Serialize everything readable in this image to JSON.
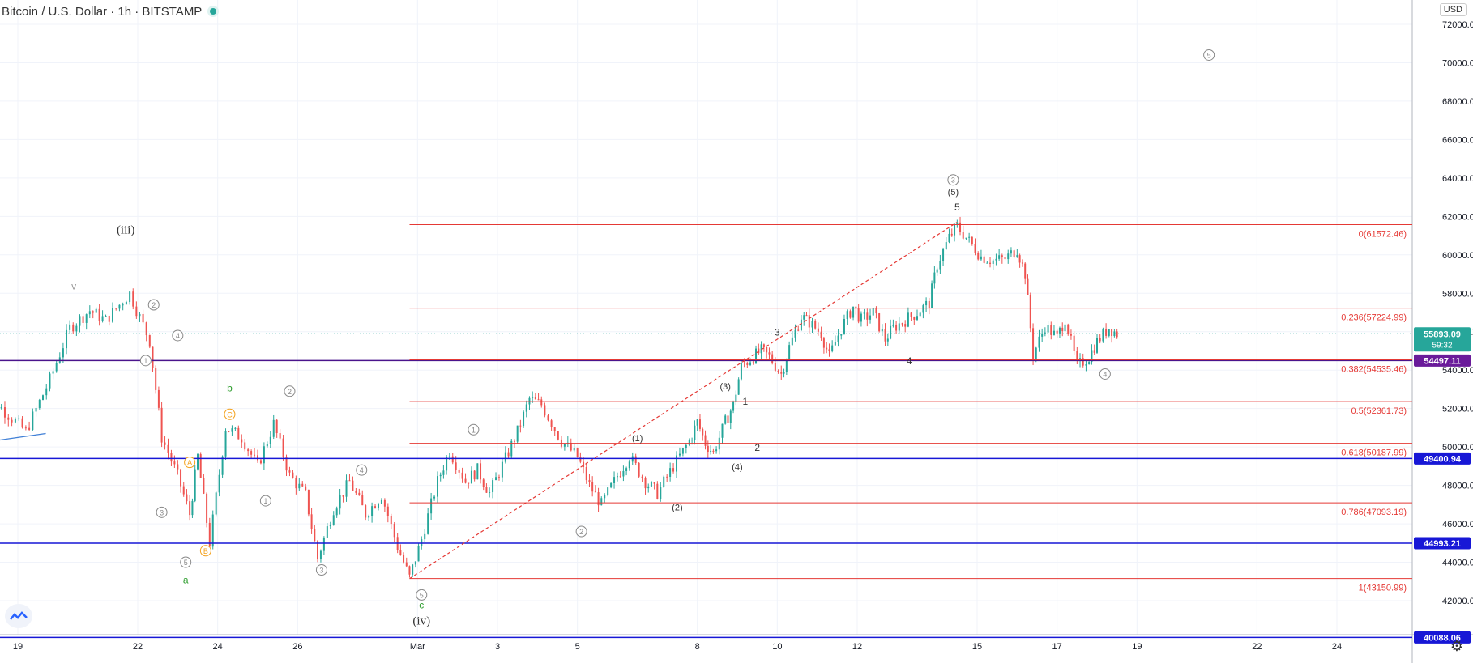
{
  "header": {
    "symbol": "Bitcoin / U.S. Dollar",
    "interval": "1h",
    "exchange": "BITSTAMP",
    "currency": "USD"
  },
  "chart_data": {
    "type": "candlestick",
    "y_range": [
      40000,
      73200
    ],
    "price_axis_ticks": [
      "72000.00",
      "70000.00",
      "68000.00",
      "66000.00",
      "64000.00",
      "62000.00",
      "60000.00",
      "58000.00",
      "56000.00",
      "54000.00",
      "52000.00",
      "50000.00",
      "48000.00",
      "46000.00",
      "44000.00",
      "42000.00"
    ],
    "time_axis_labels": [
      {
        "label": "19",
        "day": 19
      },
      {
        "label": "22",
        "day": 22
      },
      {
        "label": "24",
        "day": 24
      },
      {
        "label": "26",
        "day": 26
      },
      {
        "label": "Mar",
        "day": 29
      },
      {
        "label": "3",
        "day": 31
      },
      {
        "label": "5",
        "day": 33
      },
      {
        "label": "8",
        "day": 36
      },
      {
        "label": "10",
        "day": 38
      },
      {
        "label": "12",
        "day": 40
      },
      {
        "label": "15",
        "day": 43
      },
      {
        "label": "17",
        "day": 45
      },
      {
        "label": "19",
        "day": 47
      },
      {
        "label": "22",
        "day": 50
      },
      {
        "label": "24",
        "day": 52
      }
    ],
    "price_path": [
      [
        18.0,
        51600
      ],
      [
        18.5,
        52200
      ],
      [
        19.2,
        50800
      ],
      [
        19.8,
        53500
      ],
      [
        20.3,
        56200
      ],
      [
        20.8,
        57100
      ],
      [
        21.2,
        56600
      ],
      [
        21.8,
        58000
      ],
      [
        22.3,
        55500
      ],
      [
        22.6,
        50500
      ],
      [
        23.0,
        48500
      ],
      [
        23.3,
        46500
      ],
      [
        23.5,
        49500
      ],
      [
        23.8,
        45000
      ],
      [
        24.2,
        51000
      ],
      [
        24.6,
        50500
      ],
      [
        25.0,
        49000
      ],
      [
        25.4,
        51200
      ],
      [
        25.8,
        48500
      ],
      [
        26.2,
        47500
      ],
      [
        26.5,
        44200
      ],
      [
        26.9,
        46800
      ],
      [
        27.3,
        48200
      ],
      [
        27.7,
        46500
      ],
      [
        28.1,
        47500
      ],
      [
        28.5,
        44800
      ],
      [
        28.8,
        43200
      ],
      [
        29.1,
        45200
      ],
      [
        29.5,
        48200
      ],
      [
        29.8,
        49800
      ],
      [
        30.2,
        48200
      ],
      [
        30.5,
        48800
      ],
      [
        30.8,
        47600
      ],
      [
        31.2,
        49400
      ],
      [
        31.5,
        50800
      ],
      [
        31.8,
        52500
      ],
      [
        32.1,
        52200
      ],
      [
        32.6,
        50300
      ],
      [
        33.0,
        49500
      ],
      [
        33.3,
        48000
      ],
      [
        33.6,
        47000
      ],
      [
        34.0,
        48500
      ],
      [
        34.3,
        49500
      ],
      [
        34.7,
        48200
      ],
      [
        35.0,
        47600
      ],
      [
        35.4,
        49000
      ],
      [
        35.8,
        50300
      ],
      [
        36.0,
        51300
      ],
      [
        36.2,
        50200
      ],
      [
        36.4,
        49700
      ],
      [
        36.7,
        51300
      ],
      [
        36.9,
        52200
      ],
      [
        37.1,
        54200
      ],
      [
        37.4,
        54700
      ],
      [
        37.6,
        55000
      ],
      [
        37.8,
        54700
      ],
      [
        38.1,
        53800
      ],
      [
        38.3,
        55200
      ],
      [
        38.6,
        56800
      ],
      [
        38.8,
        56500
      ],
      [
        39.1,
        55900
      ],
      [
        39.3,
        54700
      ],
      [
        39.6,
        56200
      ],
      [
        39.9,
        57300
      ],
      [
        40.1,
        56600
      ],
      [
        40.4,
        57000
      ],
      [
        40.7,
        55600
      ],
      [
        40.9,
        56200
      ],
      [
        41.2,
        56600
      ],
      [
        41.5,
        57000
      ],
      [
        41.8,
        57500
      ],
      [
        42.0,
        59500
      ],
      [
        42.3,
        60900
      ],
      [
        42.5,
        61500
      ],
      [
        42.8,
        60700
      ],
      [
        43.1,
        59900
      ],
      [
        43.4,
        59700
      ],
      [
        43.7,
        59800
      ],
      [
        44.0,
        60300
      ],
      [
        44.2,
        59000
      ],
      [
        44.4,
        54800
      ],
      [
        44.7,
        56300
      ],
      [
        45.0,
        55700
      ],
      [
        45.2,
        56700
      ],
      [
        45.5,
        54200
      ],
      [
        45.8,
        54700
      ],
      [
        46.0,
        55500
      ],
      [
        46.3,
        56200
      ],
      [
        46.5,
        55900
      ]
    ],
    "fib_levels": [
      {
        "label": "0(61572.46)",
        "price": 61572.46
      },
      {
        "label": "0.236(57224.99)",
        "price": 57224.99
      },
      {
        "label": "0.382(54535.46)",
        "price": 54535.46
      },
      {
        "label": "0.5(52361.73)",
        "price": 52361.73
      },
      {
        "label": "0.618(50187.99)",
        "price": 50187.99
      },
      {
        "label": "0.786(47093.19)",
        "price": 47093.19
      },
      {
        "label": "1(43150.99)",
        "price": 43150.99
      }
    ],
    "fib_start_day": 28.8,
    "horizontal_lines": [
      {
        "label": "54497.11",
        "price": 54497.11,
        "color": "#4a148c",
        "bg": "#6a1b9a"
      },
      {
        "label": "49400.94",
        "price": 49400.94,
        "color": "#1717d6",
        "bg": "#1717d6"
      },
      {
        "label": "44993.21",
        "price": 44993.21,
        "color": "#1717d6",
        "bg": "#1717d6"
      },
      {
        "label": "40088.06",
        "price": 40088.06,
        "color": "#1717d6",
        "bg": "#1717d6"
      }
    ],
    "current_price": {
      "label": "55893.09",
      "countdown": "59:32",
      "price": 55893.09,
      "color": "#26a69a"
    },
    "trendlines": [
      {
        "from": [
          28.8,
          43150
        ],
        "to": [
          42.5,
          61700
        ],
        "style": "dashed",
        "color": "#e53935"
      },
      {
        "from": [
          18.0,
          50200
        ],
        "to": [
          19.7,
          50700
        ],
        "style": "solid",
        "color": "#3f7fd6"
      }
    ],
    "wave_labels": [
      {
        "text": "(iii)",
        "day": 21.7,
        "price": 61100,
        "kind": "plain",
        "color": "#333333"
      },
      {
        "text": "v",
        "day": 20.4,
        "price": 58200,
        "kind": "plain",
        "color": "#999999"
      },
      {
        "text": "2",
        "day": 22.4,
        "price": 57400,
        "kind": "circle",
        "color": "#888888"
      },
      {
        "text": "4",
        "day": 23.0,
        "price": 55800,
        "kind": "circle",
        "color": "#888888"
      },
      {
        "text": "1",
        "day": 22.2,
        "price": 54500,
        "kind": "circle",
        "color": "#888888"
      },
      {
        "text": "3",
        "day": 22.6,
        "price": 46600,
        "kind": "circle",
        "color": "#888888"
      },
      {
        "text": "5",
        "day": 23.2,
        "price": 44000,
        "kind": "circle",
        "color": "#888888"
      },
      {
        "text": "a",
        "day": 23.2,
        "price": 42900,
        "kind": "plain",
        "color": "#2e9d2e"
      },
      {
        "text": "A",
        "day": 23.3,
        "price": 49200,
        "kind": "circle",
        "color": "#f4a11a"
      },
      {
        "text": "B",
        "day": 23.7,
        "price": 44600,
        "kind": "circle",
        "color": "#f4a11a"
      },
      {
        "text": "C",
        "day": 24.3,
        "price": 51700,
        "kind": "circle",
        "color": "#f4a11a"
      },
      {
        "text": "b",
        "day": 24.3,
        "price": 52900,
        "kind": "plain",
        "color": "#2e9d2e"
      },
      {
        "text": "2",
        "day": 25.8,
        "price": 52900,
        "kind": "circle",
        "color": "#888888"
      },
      {
        "text": "1",
        "day": 25.2,
        "price": 47200,
        "kind": "circle",
        "color": "#888888"
      },
      {
        "text": "3",
        "day": 26.6,
        "price": 43600,
        "kind": "circle",
        "color": "#888888"
      },
      {
        "text": "4",
        "day": 27.6,
        "price": 48800,
        "kind": "circle",
        "color": "#888888"
      },
      {
        "text": "5",
        "day": 29.1,
        "price": 42300,
        "kind": "circle",
        "color": "#888888"
      },
      {
        "text": "c",
        "day": 29.1,
        "price": 41600,
        "kind": "plain",
        "color": "#2e9d2e"
      },
      {
        "text": "(iv)",
        "day": 29.1,
        "price": 40750,
        "kind": "plain",
        "color": "#333333"
      },
      {
        "text": "1",
        "day": 30.4,
        "price": 50900,
        "kind": "circle",
        "color": "#888888"
      },
      {
        "text": "2",
        "day": 33.1,
        "price": 45600,
        "kind": "circle",
        "color": "#888888"
      },
      {
        "text": "(1)",
        "day": 34.5,
        "price": 50300,
        "kind": "plain",
        "color": "#333333"
      },
      {
        "text": "(2)",
        "day": 35.5,
        "price": 46700,
        "kind": "plain",
        "color": "#333333"
      },
      {
        "text": "(3)",
        "day": 36.7,
        "price": 53000,
        "kind": "plain",
        "color": "#333333"
      },
      {
        "text": "1",
        "day": 37.2,
        "price": 52200,
        "kind": "plain",
        "color": "#333333"
      },
      {
        "text": "2",
        "day": 37.5,
        "price": 49800,
        "kind": "plain",
        "color": "#333333"
      },
      {
        "text": "(4)",
        "day": 37.0,
        "price": 48800,
        "kind": "plain",
        "color": "#333333"
      },
      {
        "text": "3",
        "day": 38.0,
        "price": 55800,
        "kind": "plain",
        "color": "#333333"
      },
      {
        "text": "4",
        "day": 41.3,
        "price": 54300,
        "kind": "plain",
        "color": "#333333"
      },
      {
        "text": "5",
        "day": 42.5,
        "price": 62300,
        "kind": "plain",
        "color": "#333333"
      },
      {
        "text": "(5)",
        "day": 42.4,
        "price": 63100,
        "kind": "plain",
        "color": "#333333"
      },
      {
        "text": "3",
        "day": 42.4,
        "price": 63900,
        "kind": "circle",
        "color": "#888888"
      },
      {
        "text": "4",
        "day": 46.2,
        "price": 53800,
        "kind": "circle",
        "color": "#888888"
      },
      {
        "text": "5",
        "day": 48.8,
        "price": 70400,
        "kind": "circle",
        "color": "#888888"
      }
    ]
  }
}
